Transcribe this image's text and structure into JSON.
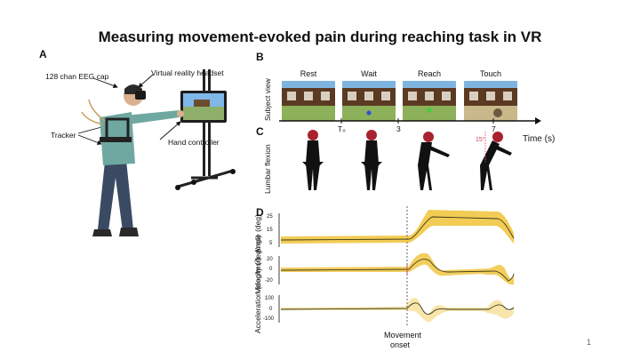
{
  "title": "Measuring movement-evoked pain during reaching task in VR",
  "panels": {
    "a": "A",
    "b": "B",
    "c": "C",
    "d": "D"
  },
  "annotations": {
    "eeg": "128 chan EEG cap",
    "vr": "Virtual reality headset",
    "tracker": "Tracker",
    "controller": "Hand controller"
  },
  "phases": [
    "Rest",
    "Wait",
    "Reach",
    "Touch"
  ],
  "subject_view": "Subject view",
  "time_axis": {
    "label": "Time (s)",
    "ticks": [
      "T₀",
      "3",
      "7"
    ]
  },
  "lumbar_label": "Lumbar flexion",
  "angle_marker": "15°",
  "rows": [
    {
      "ylabel": "Angle (deg)",
      "ticks": [
        "25",
        "15",
        "5"
      ]
    },
    {
      "ylabel": "Velocity (deg/ms)",
      "ticks": [
        "20",
        "0",
        "-20"
      ]
    },
    {
      "ylabel": "Acceleration (deg/ms²)",
      "ticks": [
        "100",
        "0",
        "-100"
      ]
    }
  ],
  "onset_label": "Movement onset",
  "page_number": "1",
  "colors": {
    "band": "#f2c94c",
    "line": "#3a3a1a",
    "onset": "#555555",
    "pink": "#e0607a"
  }
}
